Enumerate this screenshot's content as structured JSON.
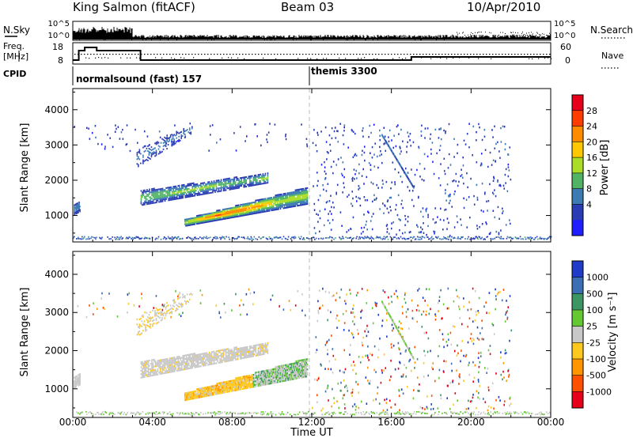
{
  "header": {
    "station": "King Salmon (fitACF)",
    "beam": "Beam 03",
    "date": "10/Apr/2010"
  },
  "top_panel": {
    "nsky_label": "N.Sky",
    "nsearch_label": "N.Search",
    "ticks_left": [
      "10^5",
      "10^0"
    ],
    "ticks_right": [
      "10^5",
      "10^0"
    ],
    "freq_label_1": "Freq.",
    "freq_label_2": "[MHz]",
    "freq_ticks": [
      "18",
      "8"
    ],
    "nave_label": "Nave",
    "nave_ticks": [
      "60",
      "0"
    ],
    "cpid_label": "CPID",
    "cpid_segments": [
      {
        "label": "normalsound (fast) 157",
        "start_hour": 0
      },
      {
        "label": "themis 3300",
        "start_hour": 12
      }
    ],
    "freq_steps": [
      {
        "from": 0.0,
        "to": 0.3,
        "mhz": 10
      },
      {
        "from": 0.3,
        "to": 0.6,
        "mhz": 16
      },
      {
        "from": 0.6,
        "to": 1.2,
        "mhz": 18
      },
      {
        "from": 1.2,
        "to": 2.9,
        "mhz": 16
      },
      {
        "from": 2.9,
        "to": 3.4,
        "mhz": 16
      },
      {
        "from": 3.4,
        "to": 17.0,
        "mhz": 10
      },
      {
        "from": 17.0,
        "to": 24.0,
        "mhz": 12
      }
    ]
  },
  "power_panel": {
    "ylabel": "Slant Range [km]",
    "yticks": [
      1000,
      2000,
      3000,
      4000
    ],
    "ylim": [
      250,
      4600
    ],
    "colorbar_label": "Power [dB]",
    "colorbar_ticks": [
      "28",
      "24",
      "20",
      "16",
      "12",
      "8",
      "4"
    ],
    "colorbar_colors": [
      "#e6001a",
      "#ff3c00",
      "#ff8c00",
      "#ffc800",
      "#aadc28",
      "#50b464",
      "#3c7ab4",
      "#2a3cb4",
      "#1e1eff"
    ]
  },
  "velocity_panel": {
    "ylabel": "Slant Range [km]",
    "yticks": [
      1000,
      2000,
      3000,
      4000
    ],
    "ylim": [
      250,
      4600
    ],
    "colorbar_label": "Velocity [m s⁻¹]",
    "colorbar_ticks": [
      "1000",
      "500",
      "100",
      "25",
      "-25",
      "-100",
      "-500",
      "-1000"
    ],
    "colorbar_colors": [
      "#1e3cc8",
      "#3c6eb4",
      "#3c9664",
      "#64c832",
      "#c8c8c8",
      "#ffc81e",
      "#ff9600",
      "#ff5000",
      "#e6001a"
    ]
  },
  "x_axis": {
    "label": "Time UT",
    "ticks": [
      "00:00",
      "04:00",
      "08:00",
      "12:00",
      "16:00",
      "20:00",
      "00:00"
    ],
    "xlim_hours": [
      0,
      24
    ]
  },
  "chart_data": {
    "type": "heatmap",
    "title": "King Salmon (fitACF) Beam 03 10/Apr/2010",
    "xlabel": "Time UT",
    "ylabel": "Slant Range [km]",
    "xlim_hours": [
      0,
      24
    ],
    "ylim_km": [
      250,
      4600
    ],
    "features": [
      {
        "panel": "power",
        "name": "main band",
        "t_start": 5.6,
        "t_end": 11.8,
        "range_start_km": 700,
        "range_end_km": 1800,
        "power_db": [
          12,
          28
        ]
      },
      {
        "panel": "power",
        "name": "upper band",
        "t_start": 3.4,
        "t_end": 10.0,
        "range_start_km": 1300,
        "range_end_km": 2600,
        "power_db": [
          4,
          16
        ]
      },
      {
        "panel": "power",
        "name": "far echoes",
        "t_start": 3.2,
        "t_end": 6.0,
        "range_start_km": 2400,
        "range_end_km": 3600,
        "power_db": [
          4,
          10
        ]
      },
      {
        "panel": "power",
        "name": "early patch",
        "t_start": 0.05,
        "t_end": 0.35,
        "range_start_km": 1050,
        "range_end_km": 1450,
        "power_db": [
          4,
          12
        ]
      },
      {
        "panel": "power",
        "name": "arc",
        "t_start": 15.5,
        "t_end": 17.1,
        "range_start_km": 1600,
        "range_end_km": 3300,
        "power_db": [
          4,
          10
        ]
      },
      {
        "panel": "velocity",
        "name": "main band",
        "t_start": 5.6,
        "t_end": 11.8,
        "range_start_km": 700,
        "range_end_km": 1800,
        "velocity_ms": [
          -100,
          100
        ]
      },
      {
        "panel": "velocity",
        "name": "upper band",
        "t_start": 3.4,
        "t_end": 10.0,
        "range_start_km": 1300,
        "range_end_km": 2600,
        "velocity_ms": [
          -25,
          25
        ]
      }
    ]
  }
}
